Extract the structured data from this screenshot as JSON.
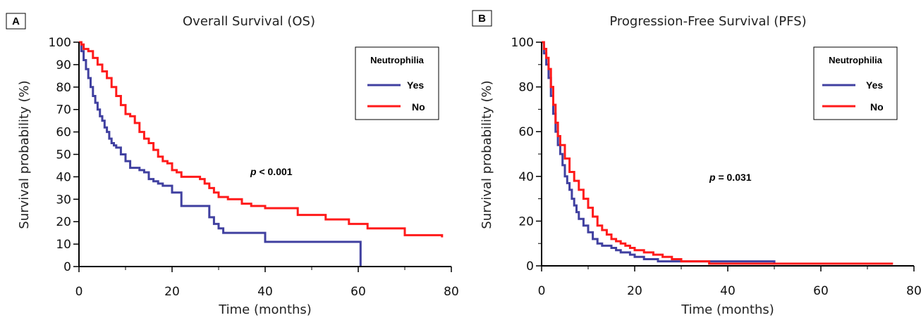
{
  "legend_title": "Neutrophilia",
  "colors": {
    "yes": "#4040a0",
    "no": "#ff1a1a"
  },
  "chart_data": [
    {
      "panel": "A",
      "type": "line",
      "step": true,
      "title": "Overall Survival (OS)",
      "xlabel": "Time (months)",
      "ylabel": "Survival probability (%)",
      "xlim": [
        0,
        80
      ],
      "ylim": [
        0,
        100
      ],
      "xticks": [
        0,
        20,
        40,
        60,
        80
      ],
      "yticks": [
        0,
        10,
        20,
        30,
        40,
        50,
        60,
        70,
        80,
        90,
        100
      ],
      "grid": false,
      "legend_position": "top-right",
      "annotation": {
        "italic": "p",
        "text": " < 0.001"
      },
      "series": [
        {
          "name": "Yes",
          "color": "#4040a0",
          "x": [
            0,
            0.5,
            1,
            1.5,
            2,
            2.5,
            3,
            3.5,
            4,
            4.5,
            5,
            5.5,
            6,
            6.5,
            7,
            7.5,
            8,
            9,
            10,
            11,
            12,
            13,
            14,
            15,
            16,
            17,
            18,
            20,
            21,
            22,
            25,
            27,
            28,
            29,
            30,
            31,
            32,
            35,
            38,
            40,
            45,
            50,
            55,
            60.5
          ],
          "y": [
            100,
            96,
            92,
            88,
            84,
            80,
            76,
            73,
            70,
            67,
            65,
            62,
            60,
            57,
            55,
            54,
            53,
            50,
            47,
            44,
            44,
            43,
            42,
            39,
            38,
            37,
            36,
            33,
            33,
            27,
            27,
            27,
            22,
            19,
            17,
            15,
            15,
            15,
            15,
            11,
            11,
            11,
            11,
            0
          ]
        },
        {
          "name": "No",
          "color": "#ff1a1a",
          "x": [
            0,
            0.5,
            1,
            2,
            3,
            4,
            5,
            6,
            7,
            8,
            9,
            10,
            11,
            12,
            13,
            14,
            15,
            16,
            17,
            18,
            19,
            20,
            21,
            22,
            24,
            26,
            27,
            28,
            29,
            30,
            32,
            35,
            37,
            40,
            44,
            47,
            50,
            53,
            56,
            58,
            60,
            62,
            65,
            68,
            70,
            75,
            78
          ],
          "y": [
            100,
            99,
            97,
            96,
            93,
            90,
            87,
            84,
            80,
            76,
            72,
            68,
            67,
            64,
            60,
            57,
            55,
            52,
            49,
            47,
            46,
            43,
            42,
            40,
            40,
            39,
            37,
            35,
            33,
            31,
            30,
            28,
            27,
            26,
            26,
            23,
            23,
            21,
            21,
            19,
            19,
            17,
            17,
            17,
            14,
            14,
            13
          ]
        }
      ]
    },
    {
      "panel": "B",
      "type": "line",
      "step": true,
      "title": "Progression-Free Survival (PFS)",
      "xlabel": "Time (months)",
      "ylabel": "Survival probability (%)",
      "xlim": [
        0,
        80
      ],
      "ylim": [
        0,
        100
      ],
      "xticks": [
        0,
        20,
        40,
        60,
        80
      ],
      "yticks": [
        0,
        20,
        40,
        60,
        80,
        100
      ],
      "grid": false,
      "legend_position": "top-right",
      "annotation": {
        "italic": "p",
        "text": " = 0.031"
      },
      "series": [
        {
          "name": "Yes",
          "color": "#4040a0",
          "x": [
            0,
            0.5,
            1,
            1.5,
            2,
            2.5,
            3,
            3.5,
            4,
            4.5,
            5,
            5.5,
            6,
            6.5,
            7,
            7.5,
            8,
            9,
            10,
            11,
            12,
            13,
            14,
            15,
            16,
            17,
            18,
            19,
            20,
            22,
            25,
            28,
            30,
            35,
            40,
            45,
            50
          ],
          "y": [
            100,
            95,
            90,
            84,
            76,
            68,
            60,
            54,
            50,
            45,
            40,
            37,
            34,
            30,
            27,
            24,
            21,
            18,
            15,
            12,
            10,
            9,
            9,
            8,
            7,
            6,
            6,
            5,
            4,
            3,
            2,
            2,
            2,
            2,
            2,
            2,
            1
          ]
        },
        {
          "name": "No",
          "color": "#ff1a1a",
          "x": [
            0,
            0.5,
            1,
            1.5,
            2,
            2.5,
            3,
            3.5,
            4,
            5,
            6,
            7,
            8,
            9,
            10,
            11,
            12,
            13,
            14,
            15,
            16,
            17,
            18,
            19,
            20,
            22,
            24,
            26,
            28,
            30,
            33,
            36,
            40,
            45,
            50,
            55,
            60,
            65,
            70,
            75.5
          ],
          "y": [
            100,
            97,
            93,
            88,
            80,
            72,
            64,
            58,
            54,
            48,
            42,
            38,
            34,
            30,
            26,
            22,
            18,
            16,
            14,
            12,
            11,
            10,
            9,
            8,
            7,
            6,
            5,
            4,
            3,
            2,
            2,
            1,
            1,
            1,
            1,
            1,
            1,
            1,
            1,
            1
          ]
        }
      ]
    }
  ]
}
